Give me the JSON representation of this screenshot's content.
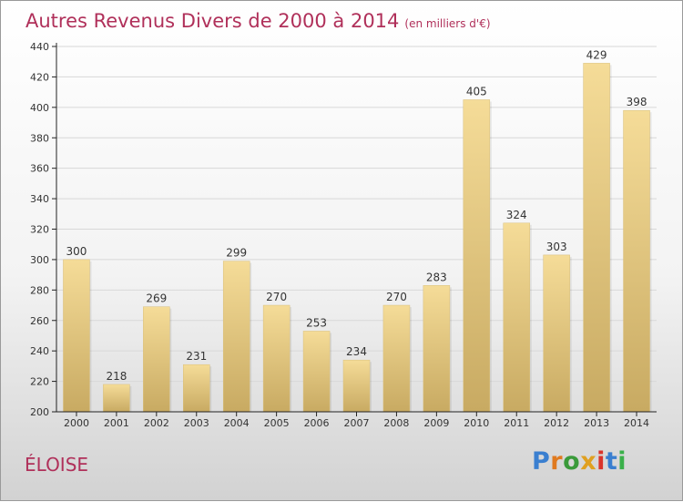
{
  "header": {
    "title": "Autres Revenus Divers de 2000 à 2014",
    "subtitle": "(en milliers d'€)"
  },
  "footer": {
    "place": "ÉLOISE",
    "logo_text": "Proxiti",
    "logo_colors": [
      "#3a7fd0",
      "#e07a1f",
      "#3a9a3a",
      "#e0a020",
      "#d9342b",
      "#3a7fd0",
      "#3ab04a"
    ]
  },
  "colors": {
    "title": "#b0305a",
    "bar_light": "#f5dc98",
    "bar_dark": "#c8aa62",
    "axis": "#222222",
    "grid": "#d8d8d8"
  },
  "chart_data": {
    "type": "bar",
    "title": "Autres Revenus Divers de 2000 à 2014",
    "subtitle": "(en milliers d'€)",
    "categories": [
      "2000",
      "2001",
      "2002",
      "2003",
      "2004",
      "2005",
      "2006",
      "2007",
      "2008",
      "2009",
      "2010",
      "2011",
      "2012",
      "2013",
      "2014"
    ],
    "values": [
      300,
      218,
      269,
      231,
      299,
      270,
      253,
      234,
      270,
      283,
      405,
      324,
      303,
      429,
      398
    ],
    "ylim": [
      200,
      440
    ],
    "yticks": [
      200,
      220,
      240,
      260,
      280,
      300,
      320,
      340,
      360,
      380,
      400,
      420,
      440
    ],
    "grid": true
  }
}
